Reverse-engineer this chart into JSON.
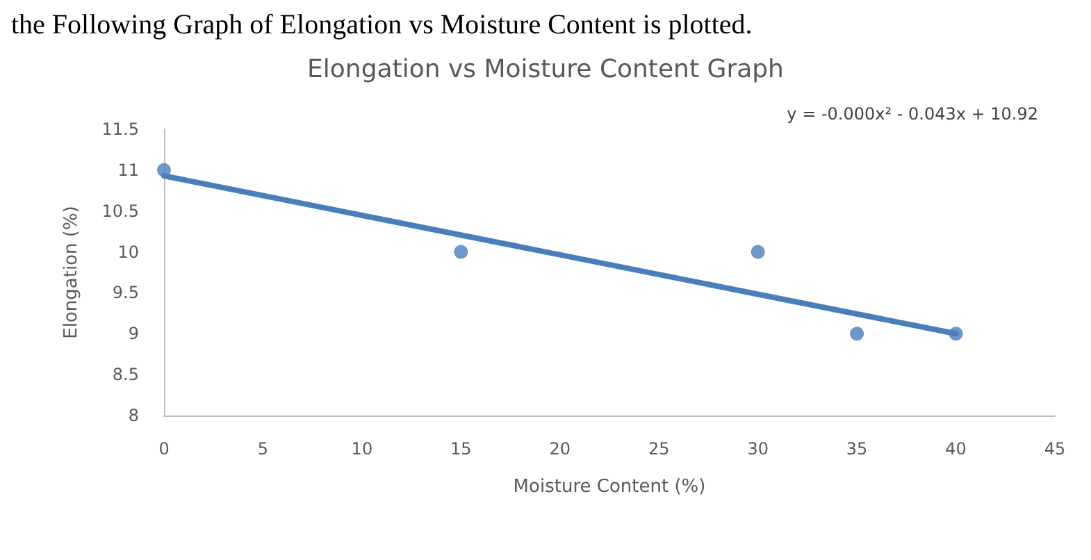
{
  "chart_data": {
    "type": "scatter",
    "title": "Elongation vs Moisture Content Graph",
    "xlabel": "Moisture Content (%)",
    "ylabel": "Elongation (%)",
    "annotations": [
      "the Following Graph of Elongation vs Moisture Content is plotted.",
      "y = -0.000x² - 0.043x + 10.92"
    ],
    "x": [
      0,
      15,
      30,
      35,
      40
    ],
    "series": [
      {
        "color": "#4a7ebb",
        "values": [
          11,
          10,
          10,
          9,
          9
        ]
      },
      {
        "type": "line",
        "color": "#4a7ebb",
        "x": [
          0,
          40
        ],
        "values": [
          10.93,
          9.0
        ],
        "marker": "none"
      }
    ],
    "marker": "circle",
    "xlim": [
      0,
      45
    ],
    "xticks": [
      0,
      5,
      10,
      15,
      20,
      25,
      30,
      35,
      40,
      45
    ],
    "ylim": [
      8,
      11.5
    ],
    "yticks": [
      8,
      8.5,
      9,
      9.5,
      10,
      10.5,
      11,
      11.5
    ],
    "grid": false
  }
}
